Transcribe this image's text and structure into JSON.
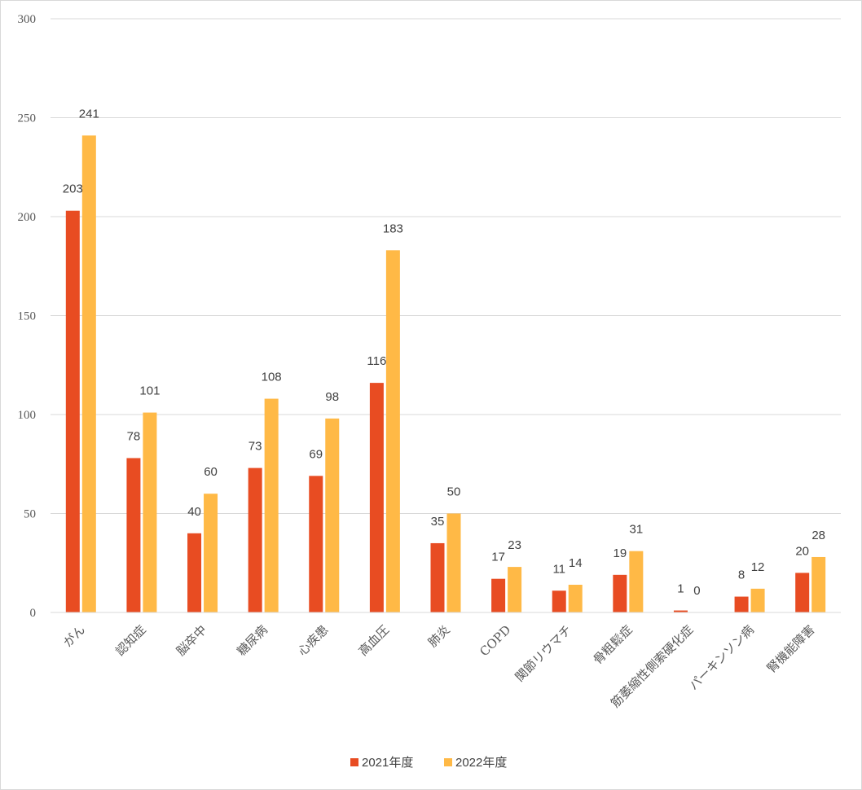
{
  "chart_data": {
    "type": "bar",
    "categories": [
      "がん",
      "認知症",
      "脳卒中",
      "糖尿病",
      "心疾患",
      "高血圧",
      "肺炎",
      "COPD",
      "関節リウマチ",
      "骨粗鬆症",
      "筋萎縮性側索硬化症",
      "パーキンソン病",
      "腎機能障害"
    ],
    "series": [
      {
        "name": "2021年度",
        "color": "#e84c22",
        "values": [
          203,
          78,
          40,
          73,
          69,
          116,
          35,
          17,
          11,
          19,
          1,
          8,
          20
        ]
      },
      {
        "name": "2022年度",
        "color": "#ffb946",
        "values": [
          241,
          101,
          60,
          108,
          98,
          183,
          50,
          23,
          14,
          31,
          0,
          12,
          28
        ]
      }
    ],
    "ylim": [
      0,
      300
    ],
    "yticks": [
      "0",
      "50",
      "100",
      "150",
      "200",
      "250",
      "300"
    ],
    "grid": true,
    "legend_position": "bottom",
    "data_labels": true
  }
}
